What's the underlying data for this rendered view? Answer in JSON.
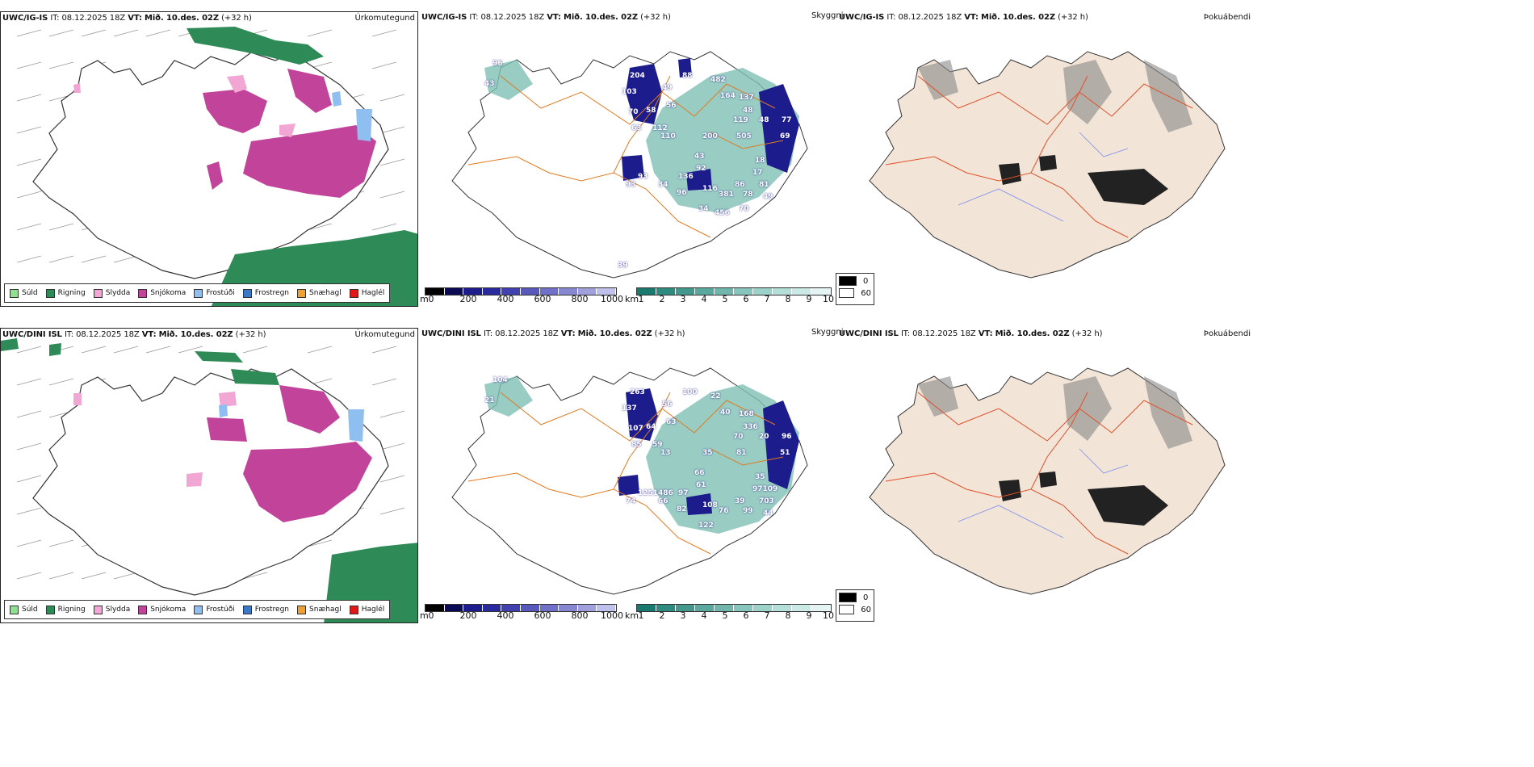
{
  "rows": [
    {
      "model": "UWC/IG-IS",
      "it_label": "IT:",
      "it_value": "08.12.2025 18Z",
      "vt_label": "VT:",
      "vt_value": "Mið. 10.des. 02Z",
      "lead": "(+32 h)"
    },
    {
      "model": "UWC/DINI ISL",
      "it_label": "IT:",
      "it_value": "08.12.2025 18Z",
      "vt_label": "VT:",
      "vt_value": "Mið. 10.des. 02Z",
      "lead": "(+32 h)"
    }
  ],
  "panel_titles": {
    "precip": "Úrkomutegund",
    "cloud": "Skyggni",
    "fog": "Þokuábendi"
  },
  "precip_legend": [
    {
      "label": "Súld",
      "color": "#8fe08f"
    },
    {
      "label": "Rigning",
      "color": "#2e8b57"
    },
    {
      "label": "Slydda",
      "color": "#f2a6d3"
    },
    {
      "label": "Snjókoma",
      "color": "#c2449a"
    },
    {
      "label": "Frostúði",
      "color": "#8fbef0"
    },
    {
      "label": "Frostregn",
      "color": "#3a78c9"
    },
    {
      "label": "Snæhagl",
      "color": "#f0a030"
    },
    {
      "label": "Haglél",
      "color": "#e01818"
    }
  ],
  "ceiling_bar": {
    "unit": "m",
    "ticks": [
      "0",
      "200",
      "400",
      "600",
      "800",
      "1000"
    ],
    "colors": [
      "#000000",
      "#0b0b55",
      "#1c1c8c",
      "#2a2aa0",
      "#4141b0",
      "#5959bc",
      "#7070c8",
      "#8787d2",
      "#a0a0dc",
      "#c0c0ea"
    ]
  },
  "visibility_bar": {
    "unit": "km",
    "ticks": [
      "1",
      "2",
      "3",
      "4",
      "5",
      "6",
      "7",
      "8",
      "9",
      "10"
    ],
    "colors": [
      "#1a7a70",
      "#2f8a80",
      "#44998f",
      "#5aa89e",
      "#70b6ad",
      "#86c4bc",
      "#9dd2cb",
      "#b4dfd9",
      "#cbeae6",
      "#e4f4f2"
    ]
  },
  "fog_box": {
    "top": "0",
    "bottom": "60"
  },
  "map_labels": {
    "row1": [
      "96",
      "43",
      "204",
      "103",
      "70",
      "58",
      "49",
      "56",
      "63",
      "112",
      "110",
      "88",
      "482",
      "164",
      "137",
      "48",
      "119",
      "48",
      "77",
      "69",
      "505",
      "200",
      "43",
      "92",
      "18",
      "17",
      "136",
      "93",
      "93",
      "34",
      "96",
      "116",
      "381",
      "86",
      "78",
      "81",
      "49",
      "34",
      "70",
      "456",
      "39"
    ],
    "row2": [
      "104",
      "21",
      "263",
      "137",
      "107",
      "64",
      "56",
      "63",
      "85",
      "59",
      "13",
      "100",
      "22",
      "40",
      "168",
      "336",
      "70",
      "20",
      "96",
      "51",
      "81",
      "35",
      "66",
      "61",
      "35",
      "97109",
      "97",
      "1251486",
      "74",
      "66",
      "82",
      "108",
      "76",
      "39",
      "99",
      "703",
      "44",
      "122"
    ]
  },
  "colors": {
    "snow": "#c2449a",
    "rain": "#2e8b57",
    "sleet": "#f2a6d3",
    "freezing_drizzle": "#8fbef0",
    "roads": "#e07a20",
    "glacier_fill": "#f3e4d8",
    "fog_roads": "#e0502a",
    "rivers": "#7a8ef0"
  }
}
